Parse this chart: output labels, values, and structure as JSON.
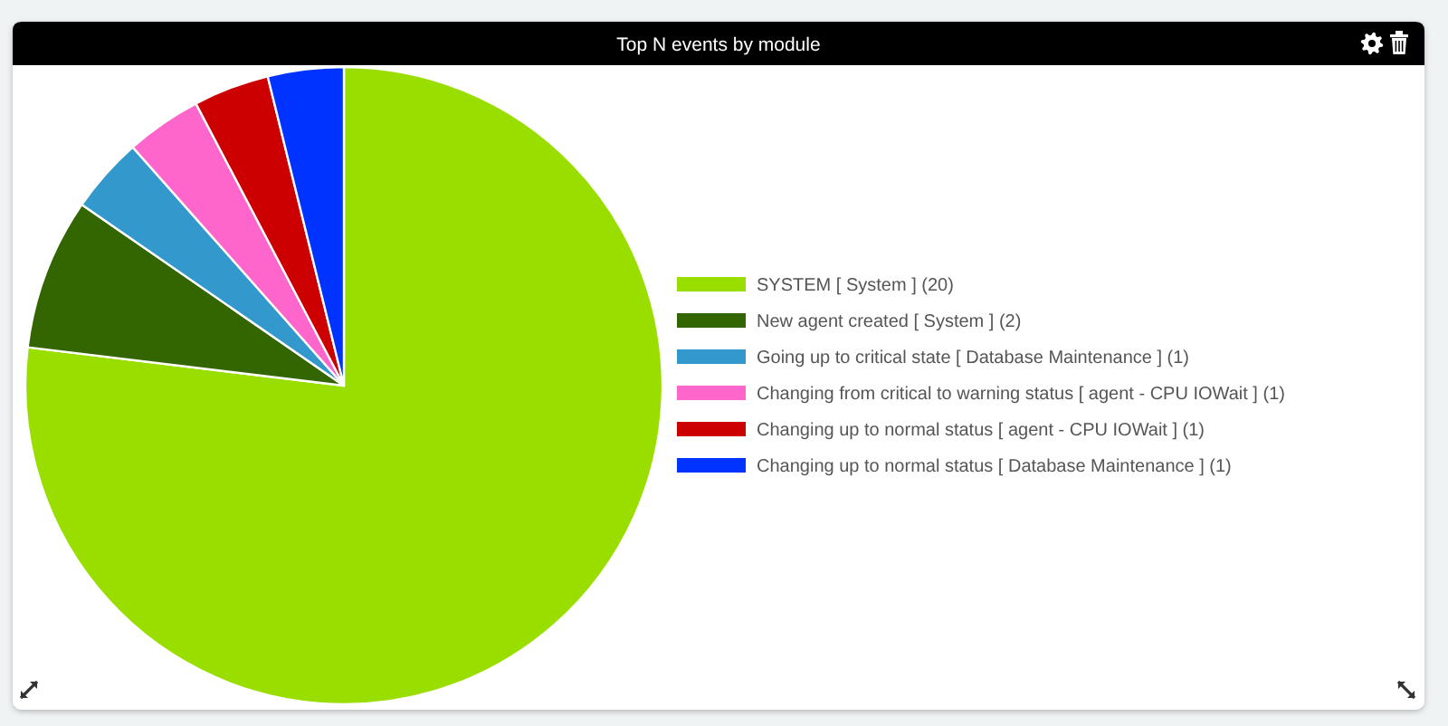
{
  "chart_data": {
    "type": "pie",
    "title": "Top N events by module",
    "categories": [
      "SYSTEM [ System ] (20)",
      "New agent created [ System ] (2)",
      "Going up to critical state [ Database Maintenance ] (1)",
      "Changing from critical to warning status [ agent - CPU IOWait ] (1)",
      "Changing up to normal status [ agent - CPU IOWait ] (1)",
      "Changing up to normal status [ Database Maintenance ] (1)"
    ],
    "values": [
      20,
      2,
      1,
      1,
      1,
      1
    ],
    "colors": [
      "#9ade00",
      "#336600",
      "#3399cc",
      "#ff66cc",
      "#cc0000",
      "#0033ff"
    ],
    "legend": "right"
  }
}
